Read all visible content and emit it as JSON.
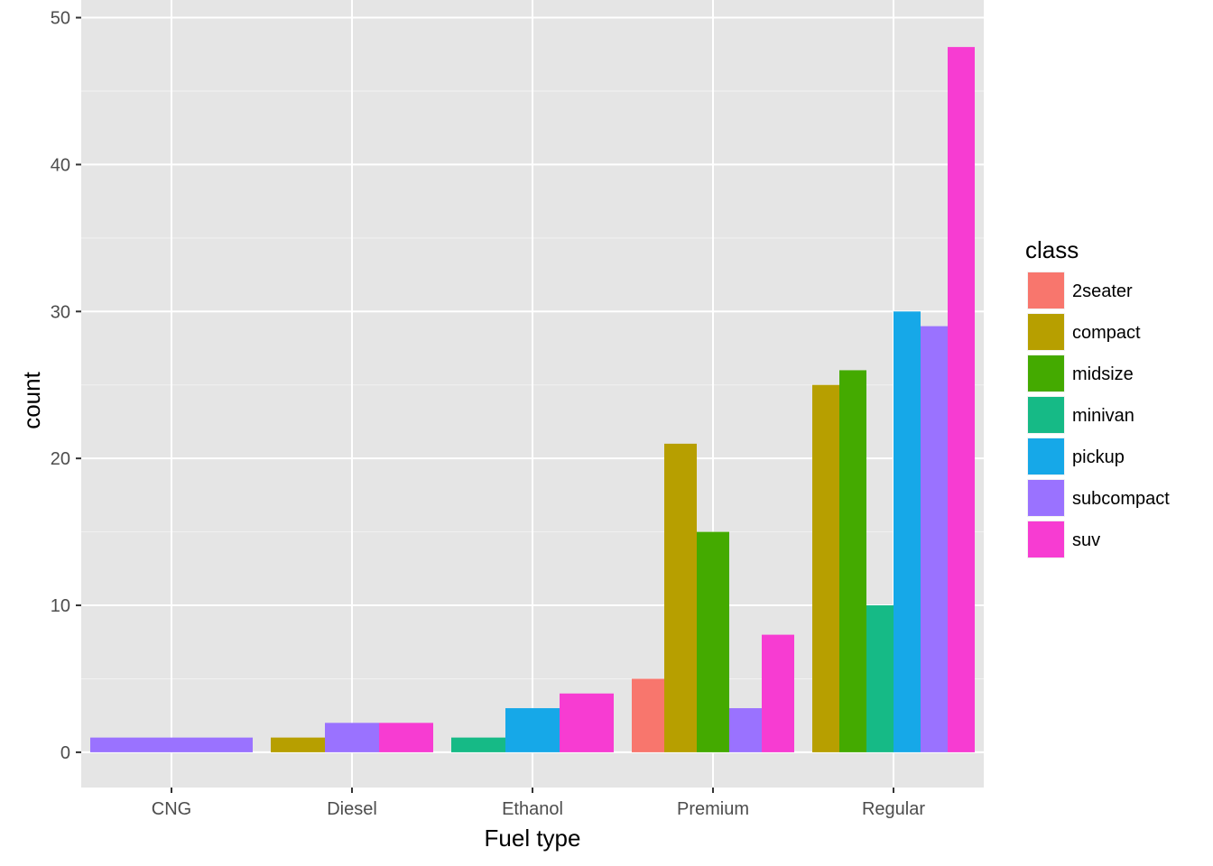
{
  "chart_data": {
    "type": "bar",
    "position": "dodge",
    "xlabel": "Fuel type",
    "ylabel": "count",
    "ylim": [
      -2.4,
      51.2
    ],
    "yticks": [
      0,
      10,
      20,
      30,
      40,
      50
    ],
    "grid": true,
    "legend": {
      "title": "class",
      "placement": "right"
    },
    "categories": [
      "CNG",
      "Diesel",
      "Ethanol",
      "Premium",
      "Regular"
    ],
    "series": [
      {
        "name": "2seater",
        "color": "#F8766D",
        "values": [
          0,
          0,
          0,
          5,
          0
        ]
      },
      {
        "name": "compact",
        "color": "#B79F00",
        "values": [
          0,
          1,
          0,
          21,
          25
        ]
      },
      {
        "name": "midsize",
        "color": "#44AA00",
        "values": [
          0,
          0,
          0,
          15,
          26
        ]
      },
      {
        "name": "minivan",
        "color": "#16BA86",
        "values": [
          0,
          0,
          1,
          0,
          10
        ]
      },
      {
        "name": "pickup",
        "color": "#16A8E8",
        "values": [
          0,
          0,
          3,
          0,
          30
        ]
      },
      {
        "name": "subcompact",
        "color": "#9A72FF",
        "values": [
          1,
          2,
          0,
          3,
          29
        ]
      },
      {
        "name": "suv",
        "color": "#F73CD2",
        "values": [
          0,
          2,
          4,
          8,
          48
        ]
      }
    ]
  }
}
